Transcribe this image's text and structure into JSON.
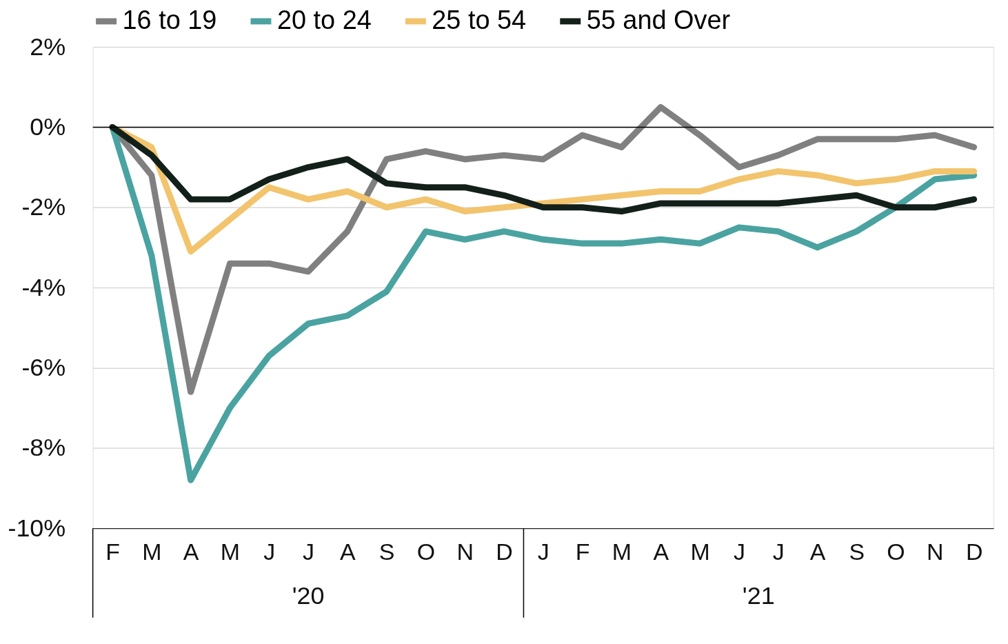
{
  "chart_data": {
    "type": "line",
    "categories": [
      "F",
      "M",
      "A",
      "M",
      "J",
      "J",
      "A",
      "S",
      "O",
      "N",
      "D",
      "J",
      "F",
      "M",
      "A",
      "M",
      "J",
      "J",
      "A",
      "S",
      "O",
      "N",
      "D"
    ],
    "series": [
      {
        "name": "16 to 19",
        "color": "#808080",
        "values": [
          0,
          -1.2,
          -6.6,
          -3.4,
          -3.4,
          -3.6,
          -2.6,
          -0.8,
          -0.6,
          -0.8,
          -0.7,
          -0.8,
          -0.2,
          -0.5,
          0.5,
          -0.2,
          -1.0,
          -0.7,
          -0.3,
          -0.3,
          -0.3,
          -0.2,
          -0.5
        ]
      },
      {
        "name": "20 to 24",
        "color": "#4aa3a0",
        "values": [
          0,
          -3.2,
          -8.8,
          -7.0,
          -5.7,
          -4.9,
          -4.7,
          -4.1,
          -2.6,
          -2.8,
          -2.6,
          -2.8,
          -2.9,
          -2.9,
          -2.8,
          -2.9,
          -2.5,
          -2.6,
          -3.0,
          -2.6,
          -2.0,
          -1.3,
          -1.2
        ]
      },
      {
        "name": "25 to 54",
        "color": "#f2c46d",
        "values": [
          0,
          -0.5,
          -3.1,
          -2.3,
          -1.5,
          -1.8,
          -1.6,
          -2.0,
          -1.8,
          -2.1,
          -2.0,
          -1.9,
          -1.8,
          -1.7,
          -1.6,
          -1.6,
          -1.3,
          -1.1,
          -1.2,
          -1.4,
          -1.3,
          -1.1,
          -1.1
        ]
      },
      {
        "name": "55 and Over",
        "color": "#13201a",
        "values": [
          0,
          -0.7,
          -1.8,
          -1.8,
          -1.3,
          -1.0,
          -0.8,
          -1.4,
          -1.5,
          -1.5,
          -1.7,
          -2.0,
          -2.0,
          -2.1,
          -1.9,
          -1.9,
          -1.9,
          -1.9,
          -1.8,
          -1.7,
          -2.0,
          -2.0,
          -1.8
        ]
      }
    ],
    "ylim": [
      -10,
      2
    ],
    "yticks": [
      {
        "value": -10,
        "label": "-10%"
      },
      {
        "value": -8,
        "label": "-8%"
      },
      {
        "value": -6,
        "label": "-6%"
      },
      {
        "value": -4,
        "label": "-4%"
      },
      {
        "value": -2,
        "label": "-2%"
      },
      {
        "value": 0,
        "label": "0%"
      },
      {
        "value": 2,
        "label": "2%"
      }
    ],
    "ref_lines": [
      {
        "axis": "y",
        "value": 0,
        "color": "#000000"
      }
    ],
    "annotations": [
      "'20",
      "'21"
    ],
    "grid": "y",
    "legend": "top",
    "line_style": "solid"
  }
}
